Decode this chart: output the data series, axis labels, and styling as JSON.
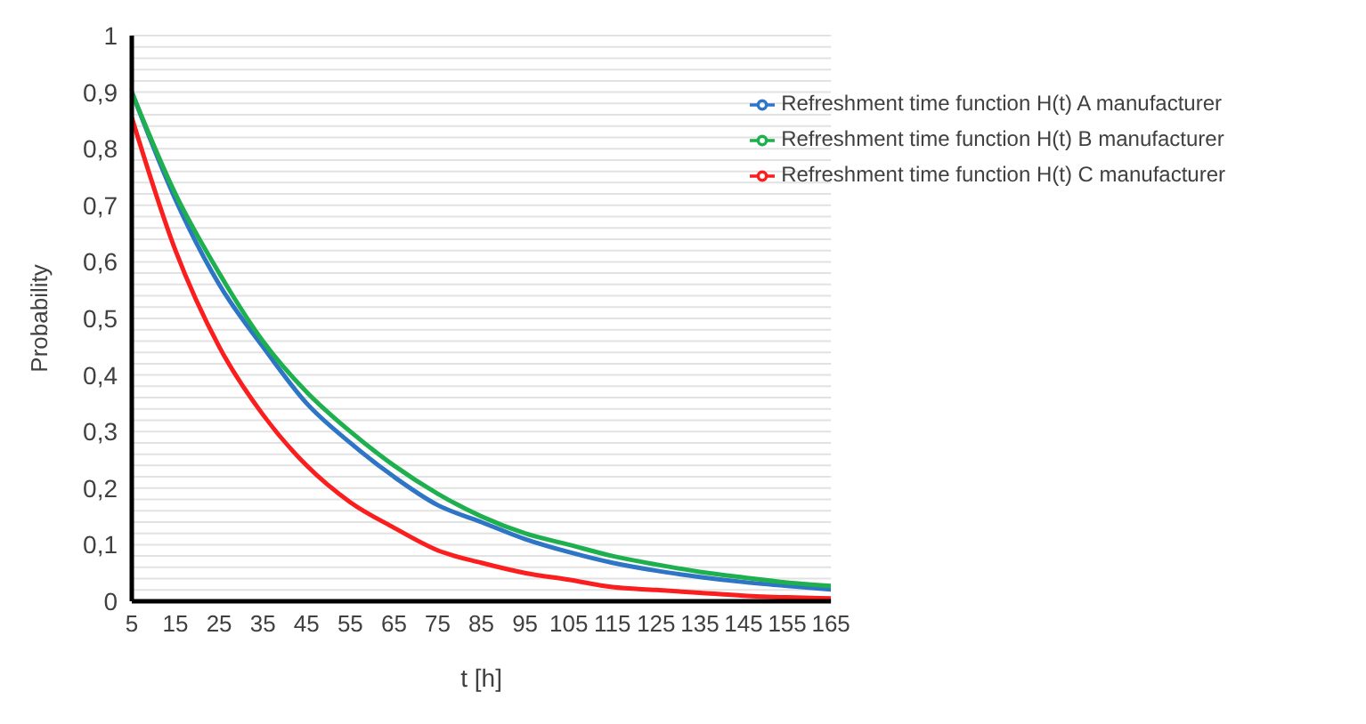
{
  "chart_data": {
    "type": "line",
    "xlabel": "t [h]",
    "ylabel": "Probability",
    "x": [
      5,
      15,
      25,
      35,
      45,
      55,
      65,
      75,
      85,
      95,
      105,
      115,
      125,
      135,
      145,
      155,
      165
    ],
    "series": [
      {
        "name": "Refreshment time function H(t) A manufacturer",
        "color": "#2e75c6",
        "values": [
          0.9,
          0.71,
          0.56,
          0.45,
          0.35,
          0.28,
          0.22,
          0.17,
          0.14,
          0.11,
          0.087,
          0.068,
          0.054,
          0.043,
          0.034,
          0.027,
          0.021
        ]
      },
      {
        "name": "Refreshment time function H(t) B manufacturer",
        "color": "#1eb04f",
        "values": [
          0.9,
          0.72,
          0.58,
          0.46,
          0.37,
          0.3,
          0.24,
          0.19,
          0.15,
          0.12,
          0.1,
          0.08,
          0.065,
          0.052,
          0.042,
          0.033,
          0.027
        ]
      },
      {
        "name": "Refreshment time function H(t) C manufacturer",
        "color": "#fa1e1e",
        "values": [
          0.855,
          0.62,
          0.45,
          0.33,
          0.24,
          0.175,
          0.13,
          0.09,
          0.068,
          0.05,
          0.038,
          0.025,
          0.02,
          0.015,
          0.01,
          0.007,
          0.005
        ]
      }
    ],
    "xlim": [
      5,
      165
    ],
    "xticks": [
      5,
      15,
      25,
      35,
      45,
      55,
      65,
      75,
      85,
      95,
      105,
      115,
      125,
      135,
      145,
      155,
      165
    ],
    "ylim": [
      0,
      1
    ],
    "yticks": [
      {
        "value": 0,
        "label": "0"
      },
      {
        "value": 0.02,
        "label": null
      },
      {
        "value": 0.04,
        "label": null
      },
      {
        "value": 0.06,
        "label": null
      },
      {
        "value": 0.08,
        "label": null
      },
      {
        "value": 0.1,
        "label": "0,1"
      },
      {
        "value": 0.12,
        "label": null
      },
      {
        "value": 0.14,
        "label": null
      },
      {
        "value": 0.16,
        "label": null
      },
      {
        "value": 0.18,
        "label": null
      },
      {
        "value": 0.2,
        "label": "0,2"
      },
      {
        "value": 0.22,
        "label": null
      },
      {
        "value": 0.24,
        "label": null
      },
      {
        "value": 0.26,
        "label": null
      },
      {
        "value": 0.28,
        "label": null
      },
      {
        "value": 0.3,
        "label": "0,3"
      },
      {
        "value": 0.32,
        "label": null
      },
      {
        "value": 0.34,
        "label": null
      },
      {
        "value": 0.36,
        "label": null
      },
      {
        "value": 0.38,
        "label": null
      },
      {
        "value": 0.4,
        "label": "0,4"
      },
      {
        "value": 0.42,
        "label": null
      },
      {
        "value": 0.44,
        "label": null
      },
      {
        "value": 0.46,
        "label": null
      },
      {
        "value": 0.48,
        "label": null
      },
      {
        "value": 0.5,
        "label": "0,5"
      },
      {
        "value": 0.52,
        "label": null
      },
      {
        "value": 0.54,
        "label": null
      },
      {
        "value": 0.56,
        "label": null
      },
      {
        "value": 0.58,
        "label": null
      },
      {
        "value": 0.6,
        "label": "0,6"
      },
      {
        "value": 0.62,
        "label": null
      },
      {
        "value": 0.64,
        "label": null
      },
      {
        "value": 0.66,
        "label": null
      },
      {
        "value": 0.68,
        "label": null
      },
      {
        "value": 0.7,
        "label": "0,7"
      },
      {
        "value": 0.72,
        "label": null
      },
      {
        "value": 0.74,
        "label": null
      },
      {
        "value": 0.76,
        "label": null
      },
      {
        "value": 0.78,
        "label": null
      },
      {
        "value": 0.8,
        "label": "0,8"
      },
      {
        "value": 0.82,
        "label": null
      },
      {
        "value": 0.84,
        "label": null
      },
      {
        "value": 0.86,
        "label": null
      },
      {
        "value": 0.88,
        "label": null
      },
      {
        "value": 0.9,
        "label": "0,9"
      },
      {
        "value": 0.92,
        "label": null
      },
      {
        "value": 0.94,
        "label": null
      },
      {
        "value": 0.96,
        "label": null
      },
      {
        "value": 0.98,
        "label": null
      },
      {
        "value": 1,
        "label": "1"
      }
    ],
    "grid": "y",
    "legend": "top right",
    "marker": "none",
    "line_style": "solid"
  }
}
